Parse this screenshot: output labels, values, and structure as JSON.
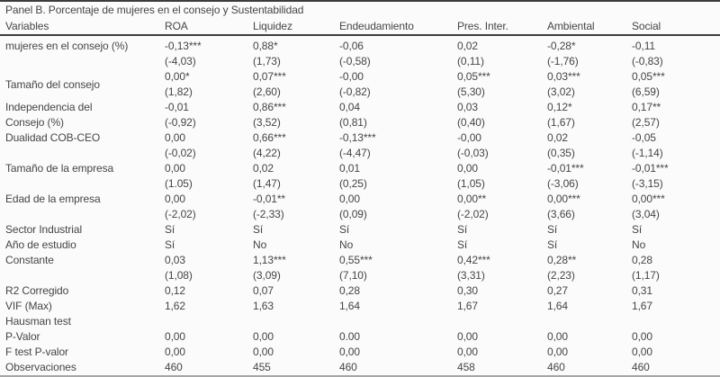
{
  "panel": {
    "title": "Panel B. Porcentaje de mujeres en el consejo y Sustentabilidad"
  },
  "colors": {
    "background": "#fbfbfb",
    "text": "#454545",
    "rule_dark": "#3c3c3c",
    "rule_light": "#a6a6a6"
  },
  "table": {
    "columns": [
      "Variables",
      "ROA",
      "Liquidez",
      "Endeudamiento",
      "Pres. Inter.",
      "Ambiental",
      "Social"
    ],
    "rows": [
      {
        "label": [
          "mujeres en el consejo (%)"
        ],
        "valign": "top",
        "lines": [
          [
            "-0,13***",
            "0,88*",
            "-0,06",
            "0,02",
            "-0,28*",
            "-0,11"
          ],
          [
            "(-4,03)",
            "(1,73)",
            "(-0,58)",
            "(0,11)",
            "(-1,76)",
            "(-0,83)"
          ]
        ]
      },
      {
        "label": [
          "Tamaño del consejo"
        ],
        "valign": "middle",
        "lines": [
          [
            "0,00*",
            "0,07***",
            "-0,00",
            "0,05***",
            "0,03***",
            "0,05***"
          ],
          [
            "(1,82)",
            "(2,60)",
            "(-0,82)",
            "(5,30)",
            "(3,02)",
            "(6,59)"
          ]
        ]
      },
      {
        "label": [
          "Independencia del",
          "Consejo (%)"
        ],
        "valign": "top",
        "lines": [
          [
            "-0,01",
            "0,86***",
            "0,04",
            "0,03",
            "0,12*",
            "0,17**"
          ],
          [
            "(-0,92)",
            "(3,52)",
            "(0,81)",
            "(0,40)",
            "(1,67)",
            "(2,57)"
          ]
        ]
      },
      {
        "label": [
          "Dualidad COB-CEO"
        ],
        "valign": "top",
        "lines": [
          [
            "0,00",
            "0,66***",
            "-0,13***",
            "-0,00",
            "0,02",
            "-0,05"
          ],
          [
            "(-0,02)",
            "(4,22)",
            "(-4,47)",
            "(-0,03)",
            "(0,35)",
            "(-1,14)"
          ]
        ]
      },
      {
        "label": [
          "Tamaño de la empresa"
        ],
        "valign": "top",
        "lines": [
          [
            "0,00",
            "0,02",
            "0,01",
            "0,00",
            "-0,01***",
            "-0,01***"
          ],
          [
            "(1.05)",
            "(1,47)",
            "(0,25)",
            "(1,05)",
            "(-3,06)",
            "(-3,15)"
          ]
        ]
      },
      {
        "label": [
          "Edad de la empresa"
        ],
        "valign": "top",
        "lines": [
          [
            "0,00",
            "-0,01**",
            "0,00",
            "0,00**",
            "0,00***",
            "0,00***"
          ],
          [
            "(-2,02)",
            "(-2,33)",
            "(0,09)",
            "(-2,02)",
            "(3,66)",
            "(3,04)"
          ]
        ]
      },
      {
        "label": [
          "Sector Industrial"
        ],
        "valign": "top",
        "lines": [
          [
            "Sí",
            "Sí",
            "Sí",
            "Sí",
            "Sí",
            "Sí"
          ]
        ]
      },
      {
        "label": [
          "Año de estudio"
        ],
        "valign": "top",
        "lines": [
          [
            "Sí",
            "No",
            "No",
            "Sí",
            "Sí",
            "No"
          ]
        ]
      },
      {
        "label": [
          "Constante"
        ],
        "valign": "top",
        "lines": [
          [
            "0,03",
            "1,13***",
            "0,55***",
            "0,42***",
            "0,28**",
            "0,28"
          ],
          [
            "(1,08)",
            "(3,09)",
            "(7,10)",
            "(3,31)",
            "(2,23)",
            "(1,17)"
          ]
        ]
      },
      {
        "label": [
          "R2 Corregido"
        ],
        "valign": "top",
        "lines": [
          [
            "0,12",
            "0,07",
            "0,28",
            "0,30",
            "0,27",
            "0,31"
          ]
        ]
      },
      {
        "label": [
          "VIF (Max)"
        ],
        "valign": "top",
        "lines": [
          [
            "1,62",
            "1,63",
            "1,64",
            "1,67",
            "1,64",
            "1,67"
          ]
        ]
      },
      {
        "label": [
          "Hausman test"
        ],
        "valign": "top",
        "lines": [
          [
            "",
            "",
            "",
            "",
            "",
            ""
          ]
        ]
      },
      {
        "label": [
          "P-Valor"
        ],
        "valign": "top",
        "lines": [
          [
            "0,00",
            "0,00",
            "0.00",
            "0,00",
            "0,00",
            "0,00"
          ]
        ]
      },
      {
        "label": [
          "F test P-valor"
        ],
        "valign": "top",
        "lines": [
          [
            "0,00",
            "0,00",
            "0,00",
            "0,00",
            "0,00",
            "0,00"
          ]
        ]
      },
      {
        "label": [
          "Observaciones"
        ],
        "valign": "top",
        "lines": [
          [
            "460",
            "455",
            "460",
            "458",
            "460",
            "460"
          ]
        ]
      }
    ]
  }
}
